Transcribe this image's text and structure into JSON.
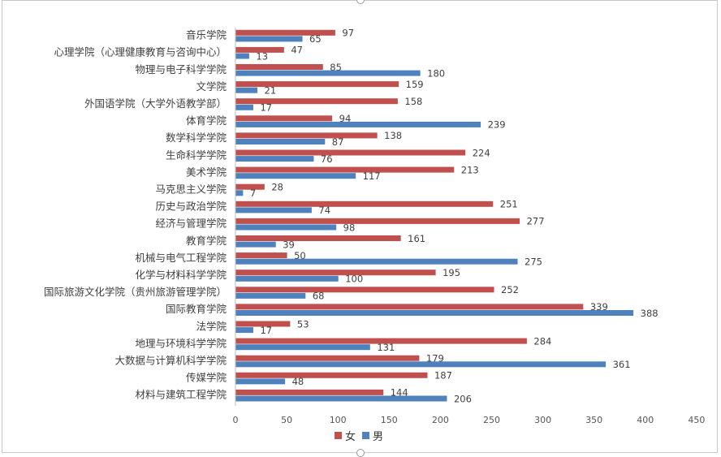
{
  "chart_data": {
    "type": "bar",
    "orientation": "horizontal",
    "categories": [
      "音乐学院",
      "心理学院（心理健康教育与咨询中心）",
      "物理与电子科学学院",
      "文学院",
      "外国语学院（大学外语教学部）",
      "体育学院",
      "数学科学学院",
      "生命科学学院",
      "美术学院",
      "马克思主义学院",
      "历史与政治学院",
      "经济与管理学院",
      "教育学院",
      "机械与电气工程学院",
      "化学与材料科学学院",
      "国际旅游文化学院（贵州旅游管理学院）",
      "国际教育学院",
      "法学院",
      "地理与环境科学学院",
      "大数据与计算机科学学院",
      "传媒学院",
      "材料与建筑工程学院"
    ],
    "series": [
      {
        "name": "女",
        "color": "#c0504d",
        "values": [
          97,
          47,
          85,
          159,
          158,
          94,
          138,
          224,
          213,
          28,
          251,
          277,
          161,
          50,
          195,
          252,
          339,
          53,
          284,
          179,
          187,
          144
        ]
      },
      {
        "name": "男",
        "color": "#4f81bd",
        "values": [
          65,
          13,
          180,
          21,
          17,
          239,
          87,
          76,
          117,
          7,
          74,
          98,
          39,
          275,
          100,
          68,
          388,
          17,
          131,
          361,
          48,
          206
        ]
      }
    ],
    "xlim": [
      0,
      450
    ],
    "xticks": [
      0,
      50,
      100,
      150,
      200,
      250,
      300,
      350,
      400,
      450
    ],
    "title": "",
    "xlabel": "",
    "ylabel": "",
    "grid": false,
    "legend_position": "bottom",
    "data_labels": true
  }
}
